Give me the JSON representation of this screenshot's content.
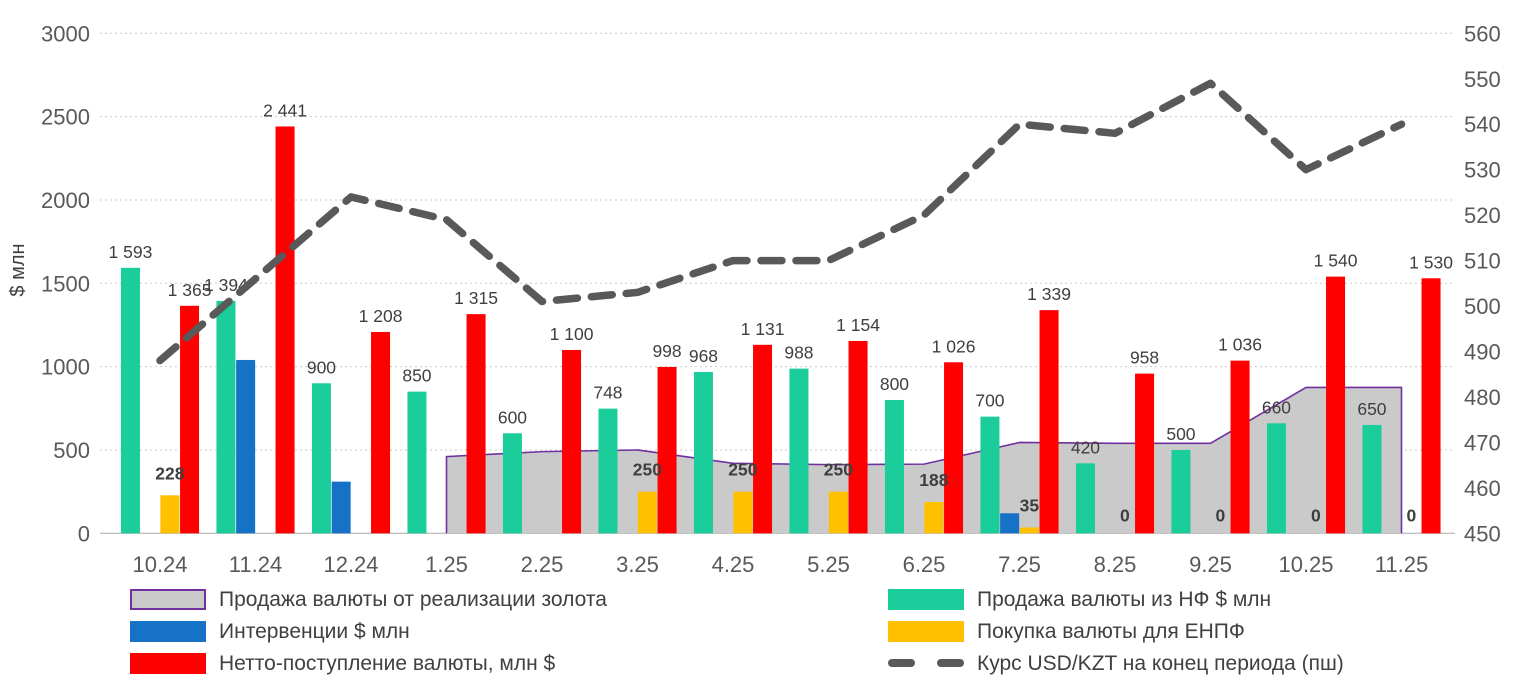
{
  "chart_data": {
    "type": "combo-bar-area-line",
    "categories": [
      "10.24",
      "11.24",
      "12.24",
      "1.25",
      "2.25",
      "3.25",
      "4.25",
      "5.25",
      "6.25",
      "7.25",
      "8.25",
      "9.25",
      "10.25",
      "11.25"
    ],
    "axis_left": {
      "title": "$ млн",
      "ticks": [
        0,
        500,
        1000,
        1500,
        2000,
        2500,
        3000
      ],
      "min": 0,
      "max": 3000
    },
    "axis_right": {
      "ticks": [
        450,
        460,
        470,
        480,
        490,
        500,
        510,
        520,
        530,
        540,
        550,
        560
      ],
      "min": 450,
      "max": 560
    },
    "grid": "horizontal-dotted",
    "series": [
      {
        "key": "gold_sales",
        "name": "Продажа валюты от реализации золота",
        "type": "area",
        "color": "#CACACA",
        "border_color": "#7030A0",
        "axis": "left",
        "values": [
          null,
          null,
          null,
          460,
          490,
          500,
          420,
          412,
          415,
          545,
          540,
          540,
          875,
          875
        ],
        "labeled": false
      },
      {
        "key": "nf_sales",
        "name": "Продажа валюты из НФ $ млн",
        "type": "bar",
        "slot": 0,
        "color": "#1BCD9B",
        "axis": "left",
        "values": [
          1593,
          1394,
          900,
          850,
          600,
          748,
          968,
          988,
          800,
          700,
          420,
          500,
          660,
          650
        ],
        "labeled": true,
        "label_bold": false
      },
      {
        "key": "interventions",
        "name": "Интервенции $ млн",
        "type": "bar",
        "slot": 1,
        "color": "#1572C6",
        "axis": "left",
        "values": [
          null,
          1040,
          310,
          null,
          null,
          null,
          null,
          null,
          null,
          120,
          null,
          null,
          null,
          null
        ],
        "labeled": false,
        "label_bold": false
      },
      {
        "key": "enpf_purchases",
        "name": "Покупка валюты для ЕНПФ",
        "type": "bar",
        "slot": 2,
        "color": "#FFC000",
        "axis": "left",
        "values": [
          228,
          null,
          null,
          null,
          null,
          250,
          250,
          250,
          188,
          35,
          0,
          0,
          0,
          0
        ],
        "labeled": true,
        "label_bold": true
      },
      {
        "key": "netto_inflow",
        "name": "Нетто-поступление валюты, млн $",
        "type": "bar",
        "slot": 3,
        "color": "#FE0000",
        "axis": "left",
        "values": [
          1365,
          2441,
          1208,
          1315,
          1100,
          998,
          1131,
          1154,
          1026,
          1339,
          958,
          1036,
          1540,
          1530
        ],
        "labeled": true,
        "label_bold": false
      },
      {
        "key": "usd_kzt",
        "name": "Курс USD/KZT на конец периода (пш)",
        "type": "dashed-line",
        "color": "#595959",
        "axis": "right",
        "values": [
          488,
          506,
          524,
          519,
          501,
          503,
          510,
          510,
          520,
          540,
          538,
          549,
          530,
          540
        ],
        "labeled": false
      }
    ]
  },
  "legend": {
    "left": [
      {
        "series": "gold_sales",
        "label": "Продажа валюты от реализации золота"
      },
      {
        "series": "interventions",
        "label": "Интервенции $ млн"
      },
      {
        "series": "netto_inflow",
        "label": "Нетто-поступление валюты, млн $"
      }
    ],
    "right": [
      {
        "series": "nf_sales",
        "label": "Продажа валюты из НФ $ млн"
      },
      {
        "series": "enpf_purchases",
        "label": "Покупка валюты для ЕНПФ"
      },
      {
        "series": "usd_kzt",
        "label": "Курс USD/KZT на конец периода (пш)"
      }
    ]
  },
  "colors": {
    "grid": "#C9C9C9",
    "axis_line": "#C0C0C0",
    "tick_text": "#595959",
    "bar_label_text": "#3F3F3F",
    "axis_title_text": "#404040"
  }
}
